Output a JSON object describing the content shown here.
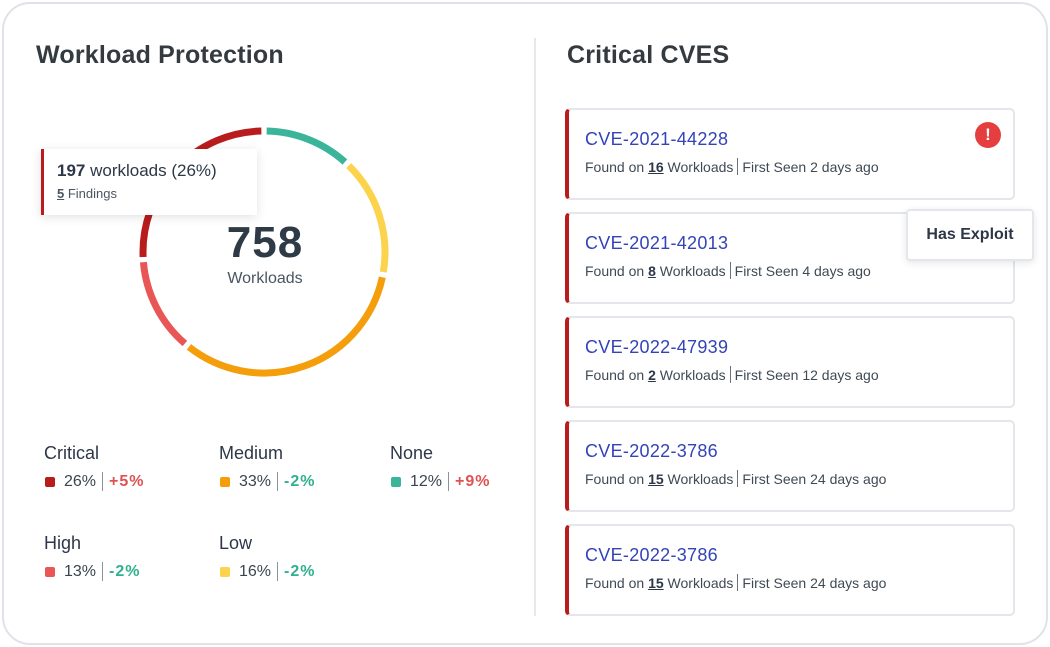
{
  "left_panel": {
    "title": "Workload Protection",
    "total": "758",
    "total_label": "Workloads",
    "tooltip": {
      "count": "197",
      "label": " workloads (26%)",
      "findings_count": "5",
      "findings_label": " Findings"
    }
  },
  "chart_data": {
    "type": "pie",
    "variant": "donut",
    "center_value": 758,
    "center_label": "Workloads",
    "slices": [
      {
        "name": "Critical",
        "percent": 26,
        "change": "+5%",
        "color": "#b91c1c"
      },
      {
        "name": "Medium",
        "percent": 33,
        "change": "-2%",
        "color": "#f59e0b"
      },
      {
        "name": "None",
        "percent": 12,
        "change": "+9%",
        "color": "#3bb59a"
      },
      {
        "name": "High",
        "percent": 13,
        "change": "-2%",
        "color": "#e85656"
      },
      {
        "name": "Low",
        "percent": 16,
        "change": "-2%",
        "color": "#fcd34d"
      }
    ]
  },
  "legend": [
    {
      "name": "Critical",
      "pct": "26%",
      "change": "+5%",
      "dir": "pos",
      "color": "#b91c1c"
    },
    {
      "name": "Medium",
      "pct": "33%",
      "change": "-2%",
      "dir": "neg",
      "color": "#f59e0b"
    },
    {
      "name": "None",
      "pct": "12%",
      "change": "+9%",
      "dir": "pos",
      "color": "#3bb59a"
    },
    {
      "name": "High",
      "pct": "13%",
      "change": "-2%",
      "dir": "neg",
      "color": "#e85656"
    },
    {
      "name": "Low",
      "pct": "16%",
      "change": "-2%",
      "dir": "neg",
      "color": "#fcd34d"
    }
  ],
  "right_panel": {
    "title": "Critical CVES",
    "exploit_tooltip": "Has Exploit",
    "alert_icon": "!",
    "cves": [
      {
        "id": "CVE-2021-44228",
        "found_prefix": "Found on ",
        "workloads": "16",
        "workloads_label": " Workloads",
        "first_seen": "First Seen 2 days ago"
      },
      {
        "id": "CVE-2021-42013",
        "found_prefix": "Found on ",
        "workloads": "8",
        "workloads_label": " Workloads",
        "first_seen": "First Seen 4 days ago"
      },
      {
        "id": "CVE-2022-47939",
        "found_prefix": "Found on ",
        "workloads": "2",
        "workloads_label": " Workloads",
        "first_seen": "First Seen 12 days ago"
      },
      {
        "id": "CVE-2022-3786",
        "found_prefix": "Found on ",
        "workloads": "15",
        "workloads_label": " Workloads",
        "first_seen": "First Seen 24 days ago"
      },
      {
        "id": "CVE-2022-3786",
        "found_prefix": "Found on ",
        "workloads": "15",
        "workloads_label": " Workloads",
        "first_seen": "First Seen 24 days ago"
      }
    ]
  }
}
